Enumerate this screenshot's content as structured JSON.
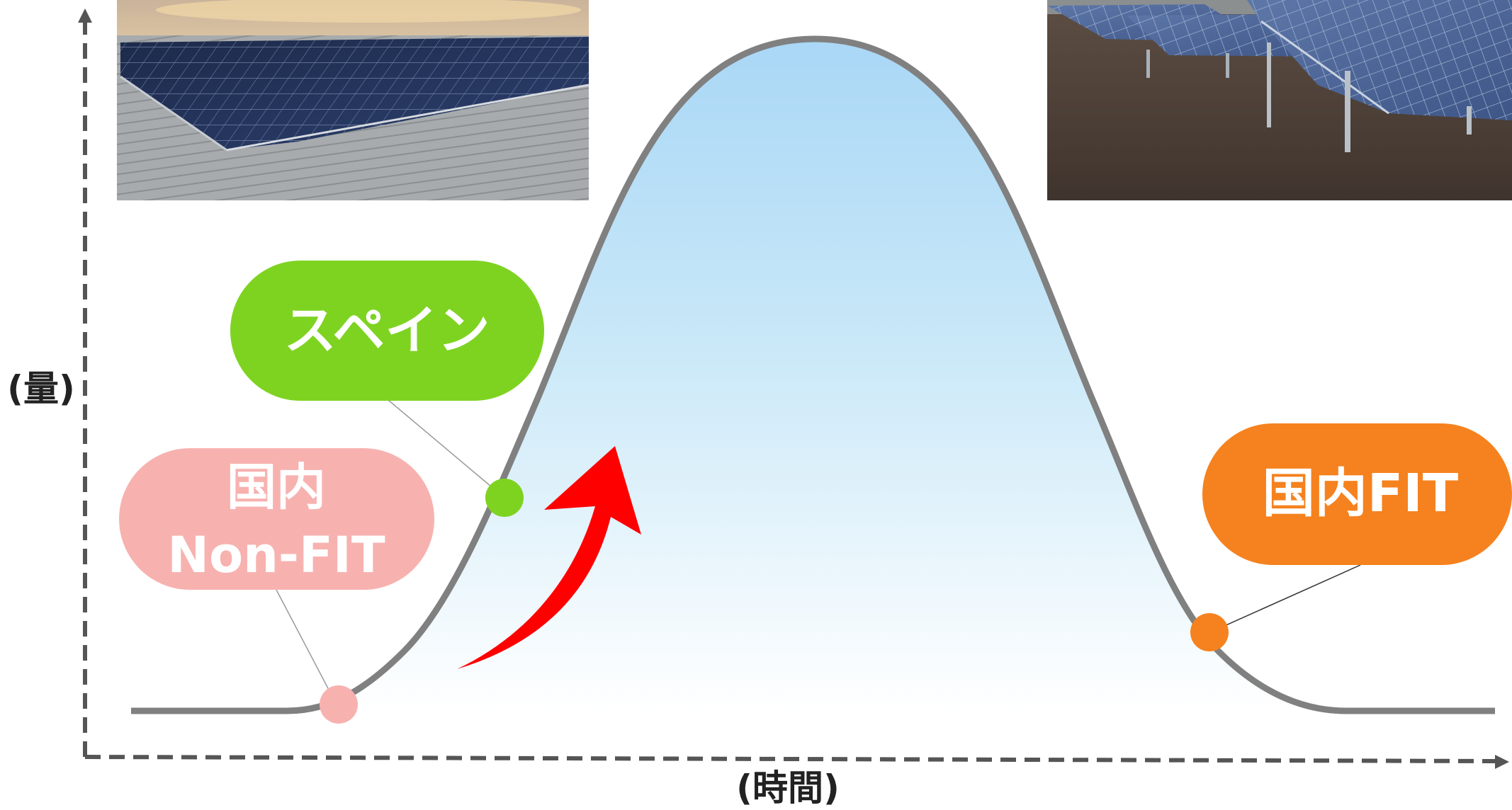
{
  "axes": {
    "y_label": "(量)",
    "x_label": "(時間)"
  },
  "callouts": {
    "spain": {
      "label": "スペイン",
      "color": "#7ed321"
    },
    "domestic_non_fit": {
      "line1": "国内",
      "line2": "Non-FIT",
      "color": "#f7b2b0"
    },
    "domestic_fit": {
      "label": "国内FIT",
      "color": "#f5821f"
    }
  },
  "colors": {
    "curve": "#808080",
    "fill_top": "#a8d8f5",
    "fill_bottom": "#ffffff",
    "arrow": "#ff0000",
    "axis": "#555555"
  },
  "photos": {
    "left": "rooftop-solar-panels-photo",
    "right": "ground-mounted-solar-array-photo"
  }
}
